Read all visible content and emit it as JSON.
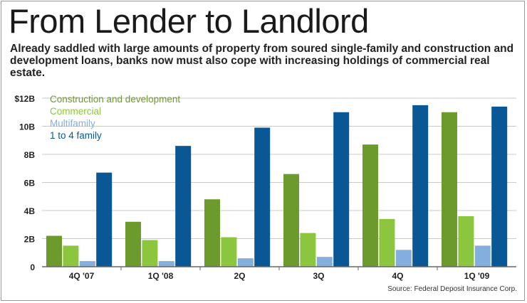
{
  "header": {
    "title": "From Lender to Landlord",
    "subtitle": "Already saddled with large amounts of property from soured single-family and construction and development loans, banks now must also cope with increasing holdings of commercial real estate."
  },
  "footer": {
    "source": "Source: Federal Deposit Insurance Corp."
  },
  "colors": {
    "construction": "#6d9a2c",
    "commercial": "#8cc63f",
    "multifamily": "#84aede",
    "one_to_four": "#0a5796",
    "grid": "#c9c9c9",
    "axis": "#666666",
    "text": "#222222"
  },
  "chart_data": {
    "type": "bar",
    "title": "From Lender to Landlord",
    "xlabel": "",
    "ylabel": "",
    "ylim": [
      0,
      12
    ],
    "yticks": [
      0,
      2,
      4,
      6,
      8,
      10,
      12
    ],
    "ytick_labels": [
      "0",
      "2B",
      "4B",
      "6B",
      "8B",
      "10B",
      "$12B"
    ],
    "grid": true,
    "legend_position": "top-left",
    "categories": [
      "4Q '07",
      "1Q '08",
      "2Q",
      "3Q",
      "4Q",
      "1Q '09"
    ],
    "series": [
      {
        "name": "Construction and development",
        "color_key": "construction",
        "values": [
          2.2,
          3.2,
          4.8,
          6.6,
          8.7,
          11.0
        ]
      },
      {
        "name": "Commercial",
        "color_key": "commercial",
        "values": [
          1.5,
          1.9,
          2.1,
          2.4,
          3.4,
          3.6
        ]
      },
      {
        "name": "Multifamily",
        "color_key": "multifamily",
        "values": [
          0.4,
          0.4,
          0.6,
          0.7,
          1.2,
          1.5
        ]
      },
      {
        "name": "1 to 4 family",
        "color_key": "one_to_four",
        "values": [
          6.7,
          8.6,
          9.9,
          11.0,
          11.5,
          11.4
        ]
      }
    ]
  }
}
